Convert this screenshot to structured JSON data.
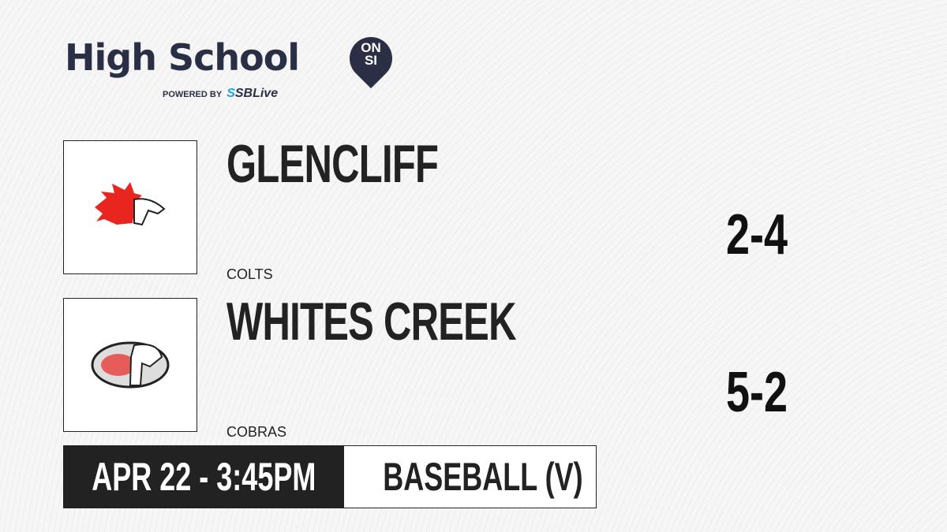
{
  "brand": {
    "title": "High School",
    "badge_line1": "ON",
    "badge_line2": "SI",
    "powered_by": "POWERED BY",
    "partner_prefix": "S",
    "partner": "SBLive"
  },
  "teams": [
    {
      "name": "GLENCLIFF",
      "mascot": "COLTS",
      "record": "2-4",
      "logo_icon": "colt-horse-icon"
    },
    {
      "name": "WHITES CREEK",
      "mascot": "COBRAS",
      "record": "5-2",
      "logo_icon": "cobra-snake-icon"
    }
  ],
  "game": {
    "datetime": "APR 22 - 3:45PM",
    "sport": "BASEBALL (V)"
  }
}
